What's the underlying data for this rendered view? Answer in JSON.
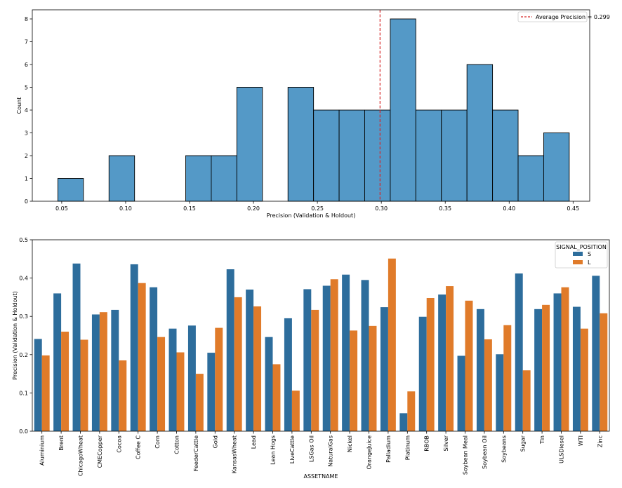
{
  "chart_data": [
    {
      "type": "bar",
      "subtype": "histogram",
      "xlabel": "Precision (Validation & Holdout)",
      "ylabel": "Count",
      "xlim": [
        0.027,
        0.463
      ],
      "ylim": [
        0,
        8.4
      ],
      "xticks": [
        0.05,
        0.1,
        0.15,
        0.2,
        0.25,
        0.3,
        0.35,
        0.4,
        0.45
      ],
      "xtick_labels": [
        "0.05",
        "0.10",
        "0.15",
        "0.20",
        "0.25",
        "0.30",
        "0.35",
        "0.40",
        "0.45"
      ],
      "yticks": [
        0,
        1,
        2,
        3,
        4,
        5,
        6,
        7,
        8
      ],
      "bin_width": 0.02,
      "bins": [
        {
          "start": 0.047,
          "count": 1
        },
        {
          "start": 0.087,
          "count": 2
        },
        {
          "start": 0.147,
          "count": 2
        },
        {
          "start": 0.167,
          "count": 2
        },
        {
          "start": 0.187,
          "count": 5
        },
        {
          "start": 0.227,
          "count": 5
        },
        {
          "start": 0.247,
          "count": 4
        },
        {
          "start": 0.267,
          "count": 4
        },
        {
          "start": 0.287,
          "count": 4
        },
        {
          "start": 0.307,
          "count": 8
        },
        {
          "start": 0.327,
          "count": 4
        },
        {
          "start": 0.347,
          "count": 4
        },
        {
          "start": 0.367,
          "count": 6
        },
        {
          "start": 0.387,
          "count": 4
        },
        {
          "start": 0.407,
          "count": 2
        },
        {
          "start": 0.427,
          "count": 3
        }
      ],
      "bar_color": "#5499c7",
      "reference_line": {
        "x": 0.299,
        "label": "Average Precision = 0.299",
        "color": "#d62728"
      },
      "legend_position": "top-right"
    },
    {
      "type": "bar",
      "subtype": "grouped",
      "xlabel": "ASSETNAME",
      "ylabel": "Precision (Validation & Holdout)",
      "ylim": [
        0,
        0.5
      ],
      "yticks": [
        0.0,
        0.1,
        0.2,
        0.3,
        0.4,
        0.5
      ],
      "ytick_labels": [
        "0.0",
        "0.1",
        "0.2",
        "0.3",
        "0.4",
        "0.5"
      ],
      "legend_title": "SIGNAL_POSITION",
      "legend_position": "top-right",
      "categories": [
        "Aluminium",
        "Brent",
        "ChicagoWheat",
        "CMECopper",
        "Cocoa",
        "Coffee C",
        "Corn",
        "Cotton",
        "FeederCattle",
        "Gold",
        "KansasWheat",
        "Lead",
        "Lean Hogs",
        "LiveCattle",
        "LSGas Oil",
        "NaturalGas",
        "Nickel",
        "OrangeJuice",
        "Palladium",
        "Platinum",
        "RBOB",
        "Silver",
        "Soybean Meal",
        "Soybean Oil",
        "Soybeans",
        "Sugar",
        "Tin",
        "ULSDiesel",
        "WTI",
        "Zinc"
      ],
      "series": [
        {
          "name": "S",
          "color": "#2d6d9c",
          "values": [
            0.241,
            0.36,
            0.438,
            0.305,
            0.317,
            0.436,
            0.376,
            0.268,
            0.276,
            0.205,
            0.423,
            0.37,
            0.246,
            0.295,
            0.371,
            0.38,
            0.409,
            0.395,
            0.324,
            0.047,
            0.299,
            0.357,
            0.197,
            0.319,
            0.201,
            0.412,
            0.319,
            0.36,
            0.325,
            0.406
          ]
        },
        {
          "name": "L",
          "color": "#e07b2a",
          "values": [
            0.198,
            0.26,
            0.239,
            0.311,
            0.185,
            0.387,
            0.246,
            0.206,
            0.15,
            0.27,
            0.35,
            0.326,
            0.175,
            0.106,
            0.317,
            0.397,
            0.263,
            0.275,
            0.451,
            0.104,
            0.348,
            0.379,
            0.341,
            0.24,
            0.277,
            0.159,
            0.33,
            0.376,
            0.268,
            0.308
          ]
        }
      ]
    }
  ]
}
